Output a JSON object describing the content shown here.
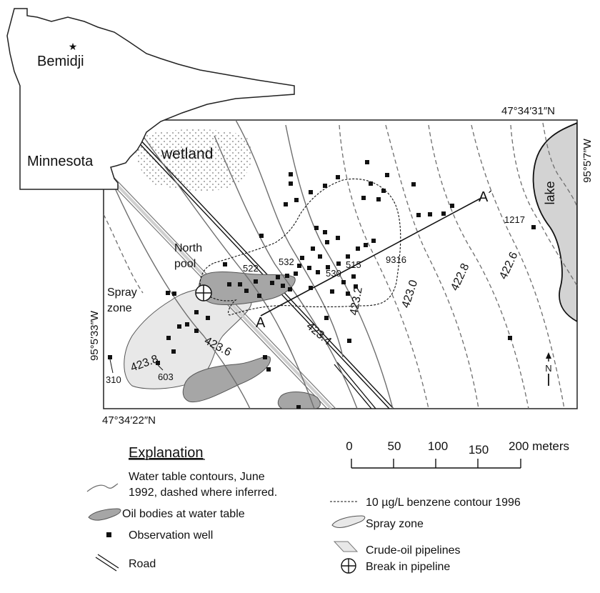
{
  "inset": {
    "state": "Minnesota",
    "city": "Bemidji",
    "city_marker": "★"
  },
  "map": {
    "corner_top_right": "47°34′31″N",
    "corner_bottom_left": "47°34′22″N",
    "left_edge": "95°5′33″W",
    "right_edge": "95°5′7″W",
    "features": {
      "wetland": "wetland",
      "lake": "lake",
      "north_pool_line1": "North",
      "north_pool_line2": "pool",
      "spray_zone_line1": "Spray",
      "spray_zone_line2": "zone",
      "section_start": "A",
      "section_end": "A´",
      "north_arrow": "N"
    },
    "contour_labels": [
      "423.8",
      "423.6",
      "423.4",
      "423.2",
      "423.0",
      "422.8",
      "422.6"
    ],
    "well_labels": [
      "522",
      "532",
      "530",
      "515",
      "9316",
      "1217",
      "603",
      "310"
    ]
  },
  "scale_bar": {
    "ticks": [
      "0",
      "50",
      "100",
      "150",
      "200 meters"
    ]
  },
  "legend": {
    "title": "Explanation",
    "contours_line1": "Water table contours, June",
    "contours_line2": "1992, dashed where inferred.",
    "benzene": "10 µg/L benzene contour 1996",
    "oil_bodies": "Oil bodies at water table",
    "spray_zone": "Spray zone",
    "observation_well": "Observation well",
    "pipelines": "Crude-oil pipelines",
    "road": "Road",
    "break": "Break in pipeline"
  },
  "colors": {
    "oil_fill": "#a6a6a6",
    "spray_fill": "#e8e8e8",
    "lake_fill": "#d3d3d3",
    "contour": "#6e6e6e",
    "well": "#111111"
  }
}
